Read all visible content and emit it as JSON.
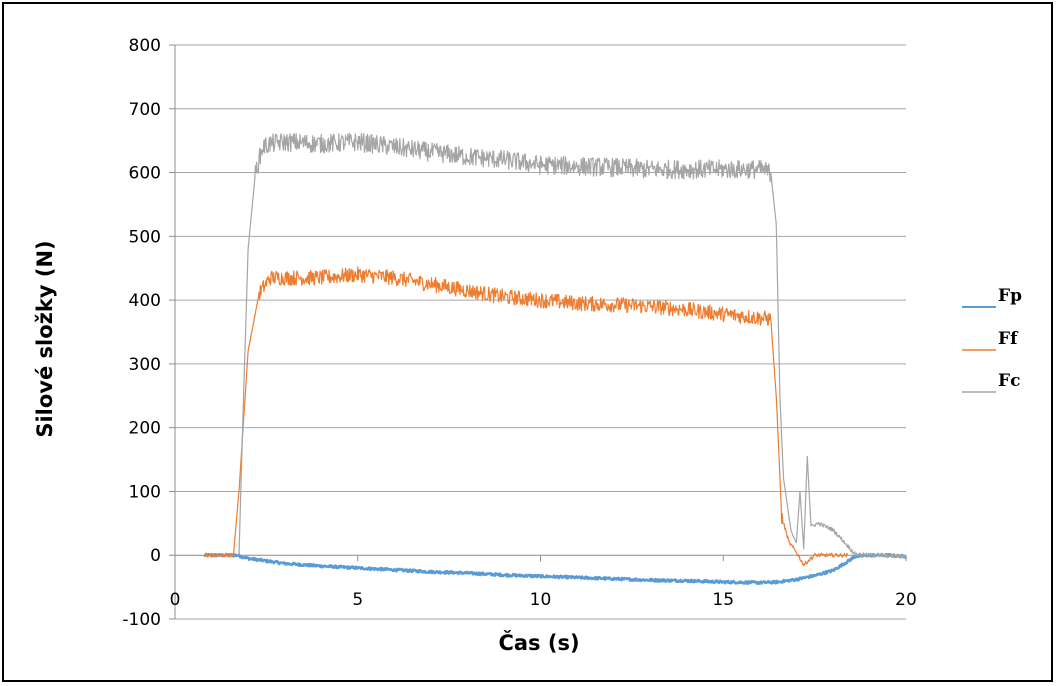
{
  "chart_data": {
    "type": "line",
    "xlabel": "Čas (s)",
    "ylabel": "Silové složky (N)",
    "xlim": [
      0,
      20
    ],
    "ylim": [
      -100,
      800
    ],
    "xticks": [
      0,
      5,
      10,
      15,
      20
    ],
    "yticks": [
      -100,
      0,
      100,
      200,
      300,
      400,
      500,
      600,
      700,
      800
    ],
    "grid": "horizontal",
    "legend_position": "right",
    "series": [
      {
        "name": "Fp",
        "color": "#5b9bd5",
        "noise": 2,
        "x": [
          0.8,
          1.7,
          2.0,
          3,
          4,
          5,
          6,
          7,
          8,
          9,
          10,
          11,
          12,
          13,
          14,
          15,
          16,
          16.5,
          17,
          17.5,
          18,
          18.4,
          18.6,
          19,
          19.5,
          20
        ],
        "y": [
          0,
          0,
          -5,
          -13,
          -17,
          -20,
          -23,
          -26,
          -28,
          -31,
          -33,
          -35,
          -37,
          -39,
          -40,
          -42,
          -43,
          -42,
          -38,
          -32,
          -24,
          -10,
          -2,
          0,
          0,
          -2
        ]
      },
      {
        "name": "Ff",
        "color": "#ed7d31",
        "noise": 12,
        "x": [
          0.8,
          1.6,
          1.75,
          2.0,
          2.3,
          2.6,
          3,
          4,
          5,
          6,
          7,
          8,
          9,
          10,
          11,
          12,
          13,
          14,
          15,
          16,
          16.3,
          16.45,
          16.6,
          16.8,
          17.0,
          17.2,
          17.5,
          18.0,
          18.4
        ],
        "y": [
          0,
          0,
          100,
          320,
          410,
          435,
          435,
          435,
          440,
          435,
          425,
          415,
          405,
          400,
          395,
          393,
          390,
          385,
          378,
          372,
          370,
          250,
          60,
          20,
          5,
          -15,
          0,
          0,
          0
        ]
      },
      {
        "name": "Fc",
        "color": "#a5a5a5",
        "noise": 15,
        "x": [
          1.75,
          1.85,
          2.0,
          2.2,
          2.4,
          2.6,
          3,
          4,
          5,
          6,
          7,
          8,
          9,
          10,
          11,
          12,
          13,
          14,
          15,
          16,
          16.3,
          16.45,
          16.55,
          16.65,
          16.85,
          17.0,
          17.1,
          17.2,
          17.3,
          17.4,
          17.6,
          18.0,
          18.4,
          18.6,
          19,
          20
        ],
        "y": [
          0,
          200,
          480,
          600,
          640,
          645,
          648,
          645,
          648,
          640,
          632,
          625,
          620,
          612,
          610,
          608,
          605,
          605,
          605,
          605,
          600,
          520,
          250,
          120,
          40,
          20,
          100,
          10,
          155,
          45,
          50,
          40,
          15,
          2,
          0,
          -2
        ]
      }
    ]
  }
}
